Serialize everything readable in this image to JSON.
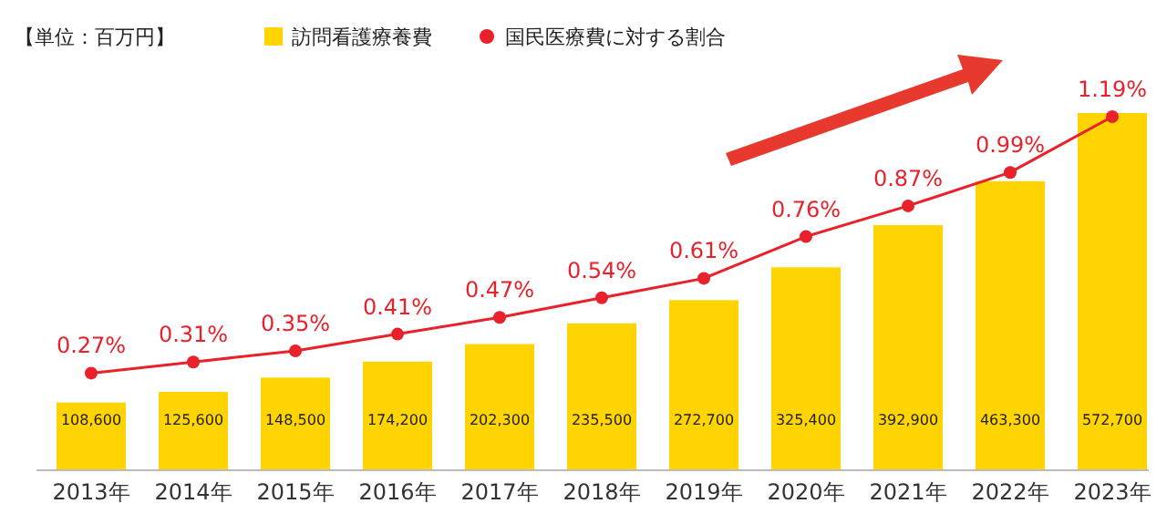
{
  "chart_data": {
    "type": "bar",
    "categories": [
      "2013年",
      "2014年",
      "2015年",
      "2016年",
      "2017年",
      "2018年",
      "2019年",
      "2020年",
      "2021年",
      "2022年",
      "2023年"
    ],
    "series": [
      {
        "name": "訪問看護療養費",
        "color": "#ffd400",
        "values": [
          108600,
          125600,
          148500,
          174200,
          202300,
          235500,
          272700,
          325400,
          392900,
          463300,
          572700
        ],
        "value_labels": [
          "108,600",
          "125,600",
          "148,500",
          "174,200",
          "202,300",
          "235,500",
          "272,700",
          "325,400",
          "392,900",
          "463,300",
          "572,700"
        ]
      },
      {
        "name": "国民医療費に対する割合",
        "type": "line",
        "axis": "y2",
        "color": "#e8212a",
        "values": [
          0.27,
          0.31,
          0.35,
          0.41,
          0.47,
          0.54,
          0.61,
          0.76,
          0.87,
          0.99,
          1.19
        ],
        "value_labels": [
          "0.27%",
          "0.31%",
          "0.35%",
          "0.41%",
          "0.47%",
          "0.54%",
          "0.61%",
          "0.76%",
          "0.87%",
          "0.99%",
          "1.19%"
        ]
      }
    ],
    "annotations": [
      "【単位：百万円】"
    ],
    "legend": "top",
    "marker": "circle"
  }
}
